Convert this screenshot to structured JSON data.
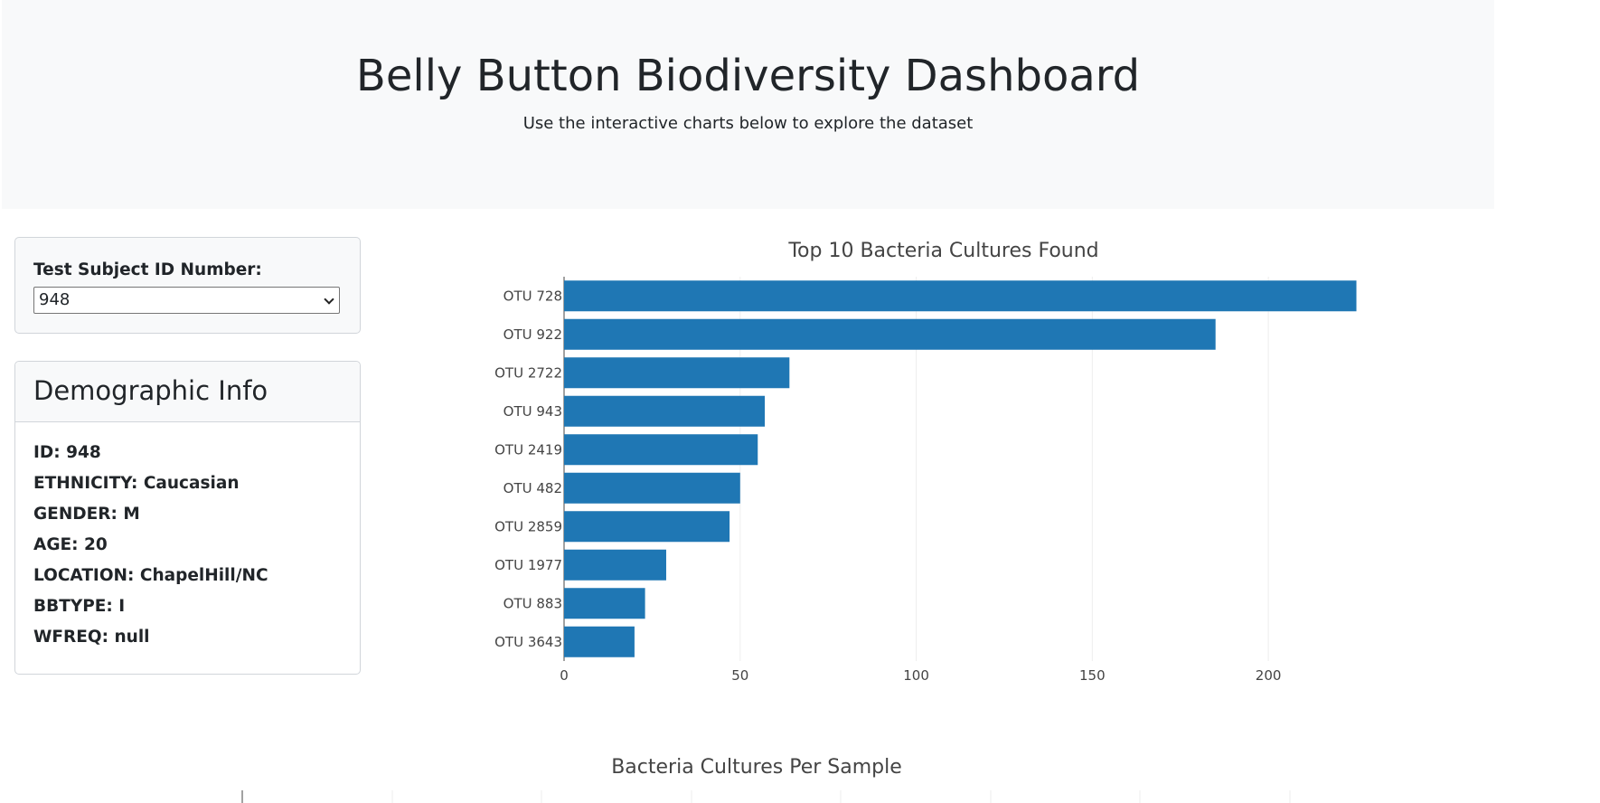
{
  "header": {
    "title": "Belly Button Biodiversity Dashboard",
    "subtitle": "Use the interactive charts below to explore the dataset"
  },
  "selector": {
    "label": "Test Subject ID Number:",
    "selected_value": "948"
  },
  "demographics": {
    "title": "Demographic Info",
    "lines": [
      "ID: 948",
      "ETHNICITY: Caucasian",
      "GENDER: M",
      "AGE: 20",
      "LOCATION: ChapelHill/NC",
      "BBTYPE: I",
      "WFREQ: null"
    ]
  },
  "colors": {
    "bar": "#1f77b4",
    "grid": "#eeeeee",
    "text": "#444444"
  },
  "chart_data": [
    {
      "type": "bar",
      "orientation": "horizontal",
      "title": "Top 10 Bacteria Cultures Found",
      "categories": [
        "OTU 728",
        "OTU 922",
        "OTU 2722",
        "OTU 943",
        "OTU 2419",
        "OTU 482",
        "OTU 2859",
        "OTU 1977",
        "OTU 883",
        "OTU 3643"
      ],
      "values": [
        225,
        185,
        64,
        57,
        55,
        50,
        47,
        29,
        23,
        20
      ],
      "xlim": [
        0,
        230
      ],
      "xticks": [
        0,
        50,
        100,
        150,
        200
      ],
      "grid": true
    },
    {
      "type": "scatter",
      "title": "Bacteria Cultures Per Sample",
      "grid": true
    }
  ]
}
